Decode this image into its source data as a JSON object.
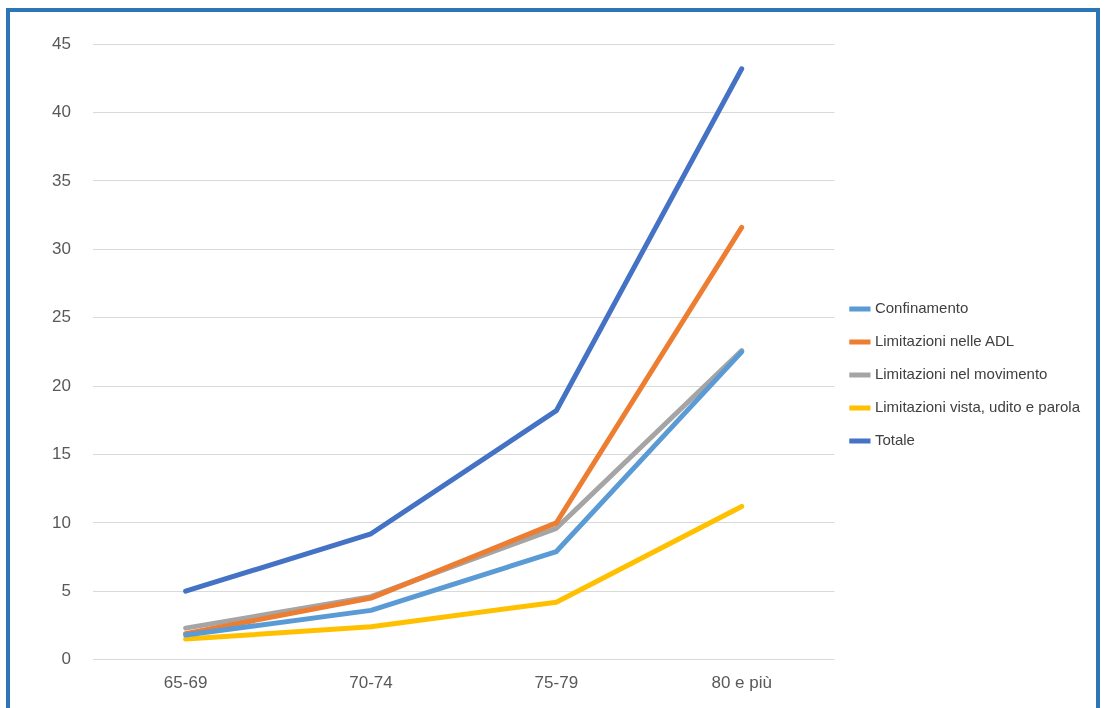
{
  "chart_data": {
    "type": "line",
    "categories": [
      "65-69",
      "70-74",
      "75-79",
      "80 e più"
    ],
    "series": [
      {
        "name": "Confinamento",
        "color": "#5b9bd5",
        "values": [
          1.8,
          3.6,
          7.9,
          22.5
        ]
      },
      {
        "name": "Limitazioni nelle ADL",
        "color": "#ed7d31",
        "values": [
          1.9,
          4.5,
          10.0,
          31.6
        ]
      },
      {
        "name": "Limitazioni nel movimento",
        "color": "#a5a5a5",
        "values": [
          2.3,
          4.6,
          9.6,
          22.6
        ]
      },
      {
        "name": "Limitazioni vista, udito e parola",
        "color": "#ffc000",
        "values": [
          1.5,
          2.4,
          4.2,
          11.2
        ]
      },
      {
        "name": "Totale",
        "color": "#4472c4",
        "values": [
          5.0,
          9.2,
          18.2,
          43.2
        ]
      }
    ],
    "ylim": [
      0,
      45
    ],
    "yticks": [
      0,
      5,
      10,
      15,
      20,
      25,
      30,
      35,
      40,
      45
    ],
    "grid": "y",
    "legend": "right",
    "marker": "none",
    "line_style": "solid"
  }
}
